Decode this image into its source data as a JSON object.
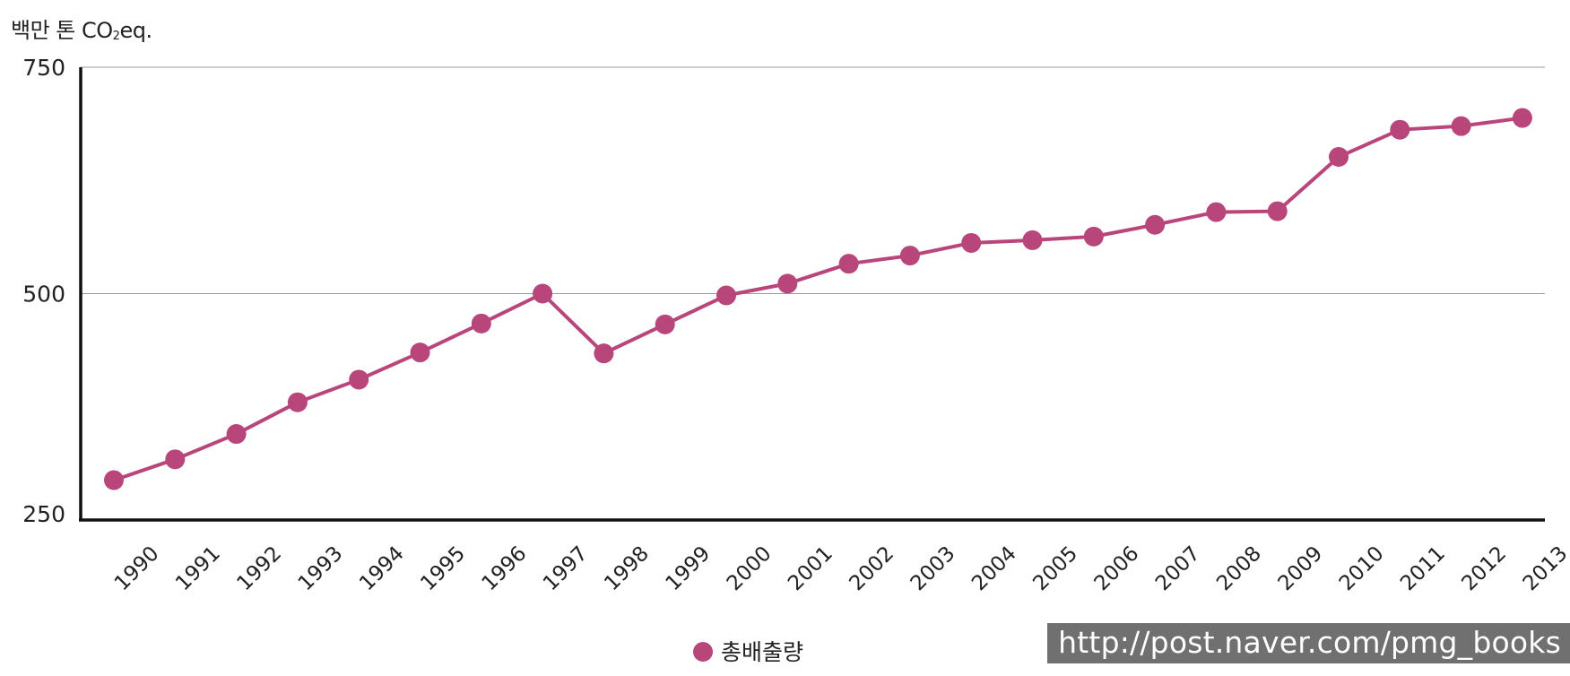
{
  "watermark": "http://post.naver.com/pmg_books",
  "chart_data": {
    "type": "line",
    "ylabel_prefix": "백만 톤 CO",
    "ylabel_sub": "2",
    "ylabel_suffix": "eq.",
    "ylim": [
      250,
      750
    ],
    "yticks": [
      250,
      500,
      750
    ],
    "grid": true,
    "legend_position": "bottom-center",
    "series_color": "#b9467a",
    "categories": [
      "1990",
      "1991",
      "1992",
      "1993",
      "1994",
      "1995",
      "1996",
      "1997",
      "1998",
      "1999",
      "2000",
      "2001",
      "2002",
      "2003",
      "2004",
      "2005",
      "2006",
      "2007",
      "2008",
      "2009",
      "2010",
      "2011",
      "2012",
      "2013"
    ],
    "series": [
      {
        "name": "총배출량",
        "values": [
          294,
          317,
          345,
          380,
          405,
          435,
          467,
          500,
          434,
          466,
          498,
          511,
          533,
          542,
          556,
          559,
          563,
          576,
          590,
          591,
          651,
          681,
          685,
          694
        ]
      }
    ]
  }
}
